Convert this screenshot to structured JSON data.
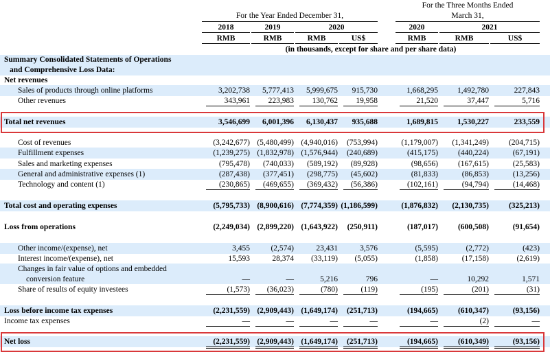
{
  "header": {
    "year_group": "For the Year Ended December 31,",
    "quarter_group_line1": "For the Three Months Ended",
    "quarter_group_line2": "March 31,",
    "years": [
      "2018",
      "2019",
      "2020",
      "2020",
      "2021"
    ],
    "currencies": [
      "RMB",
      "RMB",
      "RMB",
      "US$",
      "RMB",
      "RMB",
      "US$"
    ],
    "units_note": "(in thousands, except for share and per share data)"
  },
  "section": {
    "line1": "Summary Consolidated Statements of Operations",
    "line2": "and Comprehensive Loss Data:"
  },
  "rows": {
    "net_revenues_head": "Net revenues",
    "sales": {
      "label": "Sales of products through online platforms",
      "v": [
        "3,202,738",
        "5,777,413",
        "5,999,675",
        "915,730",
        "1,668,295",
        "1,492,780",
        "227,843"
      ]
    },
    "other_rev": {
      "label": "Other revenues",
      "v": [
        "343,961",
        "223,983",
        "130,762",
        "19,958",
        "21,520",
        "37,447",
        "5,716"
      ]
    },
    "total_rev": {
      "label": "Total net revenues",
      "v": [
        "3,546,699",
        "6,001,396",
        "6,130,437",
        "935,688",
        "1,689,815",
        "1,530,227",
        "233,559"
      ]
    },
    "cost_rev": {
      "label": "Cost of revenues",
      "v": [
        "(3,242,677)",
        "(5,480,499)",
        "(4,940,016)",
        "(753,994)",
        "(1,179,007)",
        "(1,341,249)",
        "(204,715)"
      ]
    },
    "fulfillment": {
      "label": "Fulfillment expenses",
      "v": [
        "(1,239,275)",
        "(1,832,978)",
        "(1,576,944)",
        "(240,689)",
        "(415,175)",
        "(440,224)",
        "(67,191)"
      ]
    },
    "sales_mkt": {
      "label": "Sales and marketing expenses",
      "v": [
        "(795,478)",
        "(740,033)",
        "(589,192)",
        "(89,928)",
        "(98,656)",
        "(167,615)",
        "(25,583)"
      ]
    },
    "ga": {
      "label": "General and administrative expenses (1)",
      "v": [
        "(287,438)",
        "(377,451)",
        "(298,775)",
        "(45,602)",
        "(81,833)",
        "(86,853)",
        "(13,256)"
      ]
    },
    "tech": {
      "label": "Technology and content (1)",
      "v": [
        "(230,865)",
        "(469,655)",
        "(369,432)",
        "(56,386)",
        "(102,161)",
        "(94,794)",
        "(14,468)"
      ]
    },
    "total_cost": {
      "label": "Total cost and operating expenses",
      "v": [
        "(5,795,733)",
        "(8,900,616)",
        "(7,774,359)",
        "(1,186,599)",
        "(1,876,832)",
        "(2,130,735)",
        "(325,213)"
      ]
    },
    "loss_ops": {
      "label": "Loss from operations",
      "v": [
        "(2,249,034)",
        "(2,899,220)",
        "(1,643,922)",
        "(250,911)",
        "(187,017)",
        "(600,508)",
        "(91,654)"
      ]
    },
    "other_income": {
      "label": "Other income/(expense), net",
      "v": [
        "3,455",
        "(2,574)",
        "23,431",
        "3,576",
        "(5,595)",
        "(2,772)",
        "(423)"
      ]
    },
    "interest": {
      "label": "Interest income/(expense), net",
      "v": [
        "15,593",
        "28,374",
        "(33,119)",
        "(5,055)",
        "(1,858)",
        "(17,158)",
        "(2,619)"
      ]
    },
    "fair_value": {
      "label1": "Changes in fair value of options and embedded",
      "label2": "conversion feature",
      "v": [
        "—",
        "—",
        "5,216",
        "796",
        "—",
        "10,292",
        "1,571"
      ]
    },
    "equity": {
      "label": "Share of results of equity investees",
      "v": [
        "(1,573)",
        "(36,023)",
        "(780)",
        "(119)",
        "(195)",
        "(201)",
        "(31)"
      ]
    },
    "loss_before_tax": {
      "label": "Loss before income tax expenses",
      "v": [
        "(2,231,559)",
        "(2,909,443)",
        "(1,649,174)",
        "(251,713)",
        "(194,665)",
        "(610,347)",
        "(93,156)"
      ]
    },
    "tax": {
      "label": "Income tax expenses",
      "v": [
        "—",
        "—",
        "—",
        "—",
        "—",
        "(2)",
        "—"
      ]
    },
    "net_loss": {
      "label": "Net loss",
      "v": [
        "(2,231,559)",
        "(2,909,443)",
        "(1,649,174)",
        "(251,713)",
        "(194,665)",
        "(610,349)",
        "(93,156)"
      ]
    }
  },
  "colors": {
    "stripe": "#dcecfb",
    "highlight_box": "#d9383a"
  }
}
